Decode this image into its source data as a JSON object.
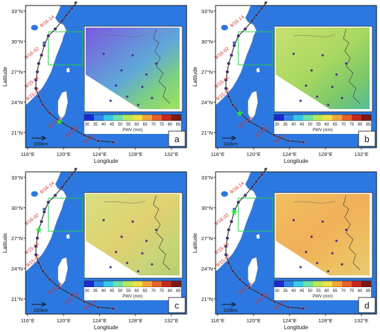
{
  "panels": [
    {
      "letter": "a",
      "marker_index": 14,
      "grad": "ga"
    },
    {
      "letter": "b",
      "marker_index": 13,
      "grad": "gb"
    },
    {
      "letter": "c",
      "marker_index": 7,
      "grad": "gc"
    },
    {
      "letter": "d",
      "marker_index": 5,
      "grad": "gd"
    }
  ],
  "axes": {
    "xlabel": "Longitude",
    "ylabel": "Latitude",
    "xticks": [
      "116°E",
      "120°E",
      "124°E",
      "128°E",
      "132°E"
    ],
    "yticks": [
      "33°N",
      "30°N",
      "27°N",
      "24°N",
      "21°N"
    ]
  },
  "colorbar": {
    "ticks": [
      "30",
      "35",
      "40",
      "45",
      "50",
      "55",
      "60",
      "65",
      "70",
      "75",
      "80",
      "85"
    ],
    "label": "PWV (mm)",
    "colors": [
      "#1a2bd6",
      "#2f86e8",
      "#38c7e6",
      "#6ee0a8",
      "#b8e85a",
      "#f0e04a",
      "#f2a53a",
      "#e8602a",
      "#c4281e",
      "#7a1a12"
    ]
  },
  "scalebar": "100km",
  "track_labels": [
    "9/16-14",
    "9/16-02",
    "9/15-14",
    "9/15-02",
    "9/14-14",
    "9/14-02",
    "9/13-14"
  ],
  "colors": {
    "sea": "#2c78e0",
    "land": "#ffffff",
    "track": "#333333",
    "point": "#4a2a8a",
    "label": "#d03030",
    "box": "#22cc44"
  }
}
